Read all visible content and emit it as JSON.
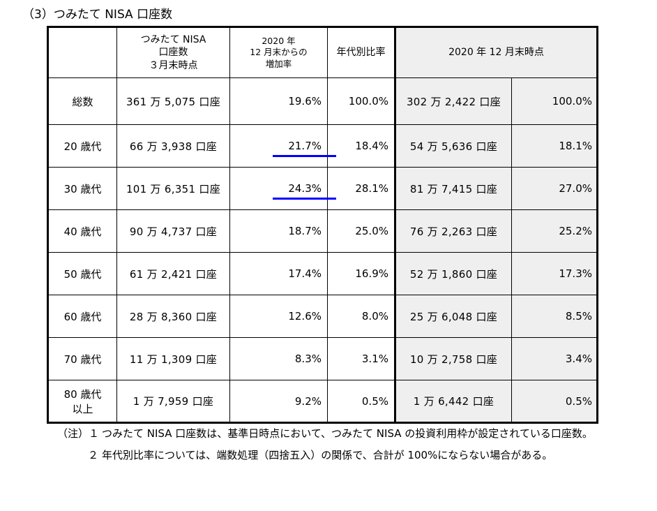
{
  "heading": "（3）つみたて NISA 口座数",
  "table": {
    "headers": {
      "col1": [
        "つみたて NISA",
        "口座数",
        "３月末時点"
      ],
      "col2": [
        "2020 年",
        "12 月末からの",
        "増加率"
      ],
      "col3": "年代別比率",
      "col4": "2020 年 12 月末時点"
    },
    "rows": [
      {
        "label": [
          "総数"
        ],
        "count": "361 万 5,075 口座",
        "rate": "19.6%",
        "ratio": "100.0%",
        "prev_count": "302 万 2,422 口座",
        "prev_ratio": "100.0%"
      },
      {
        "label": [
          "20 歳代"
        ],
        "count": "66 万 3,938 口座",
        "rate": "21.7%",
        "ratio": "18.4%",
        "prev_count": "54 万 5,636 口座",
        "prev_ratio": "18.1%",
        "highlight": true
      },
      {
        "label": [
          "30 歳代"
        ],
        "count": "101 万 6,351 口座",
        "rate": "24.3%",
        "ratio": "28.1%",
        "prev_count": "81 万 7,415 口座",
        "prev_ratio": "27.0%",
        "highlight": true
      },
      {
        "label": [
          "40 歳代"
        ],
        "count": "90 万 4,737 口座",
        "rate": "18.7%",
        "ratio": "25.0%",
        "prev_count": "76 万 2,263 口座",
        "prev_ratio": "25.2%"
      },
      {
        "label": [
          "50 歳代"
        ],
        "count": "61 万 2,421 口座",
        "rate": "17.4%",
        "ratio": "16.9%",
        "prev_count": "52 万 1,860 口座",
        "prev_ratio": "17.3%"
      },
      {
        "label": [
          "60 歳代"
        ],
        "count": "28 万 8,360 口座",
        "rate": "12.6%",
        "ratio": "8.0%",
        "prev_count": "25 万 6,048 口座",
        "prev_ratio": "8.5%"
      },
      {
        "label": [
          "70 歳代"
        ],
        "count": "11 万 1,309 口座",
        "rate": "8.3%",
        "ratio": "3.1%",
        "prev_count": "10 万 2,758 口座",
        "prev_ratio": "3.4%"
      },
      {
        "label": [
          "80 歳代",
          "以上"
        ],
        "count": "1 万 7,959 口座",
        "rate": "9.2%",
        "ratio": "0.5%",
        "prev_count": "1 万 6,442 口座",
        "prev_ratio": "0.5%"
      }
    ]
  },
  "notes": [
    {
      "label": "（注）１",
      "text": "つみたて NISA 口座数は、基準日時点において、つみたて NISA の投資利用枠が設定されている口座数。"
    },
    {
      "label": "２",
      "text": "年代別比率については、端数処理（四捨五入）の関係で、合計が 100%にならない場合がある。"
    }
  ],
  "colors": {
    "highlight_underline": "#0000ff",
    "shaded_column": "#efefef"
  }
}
